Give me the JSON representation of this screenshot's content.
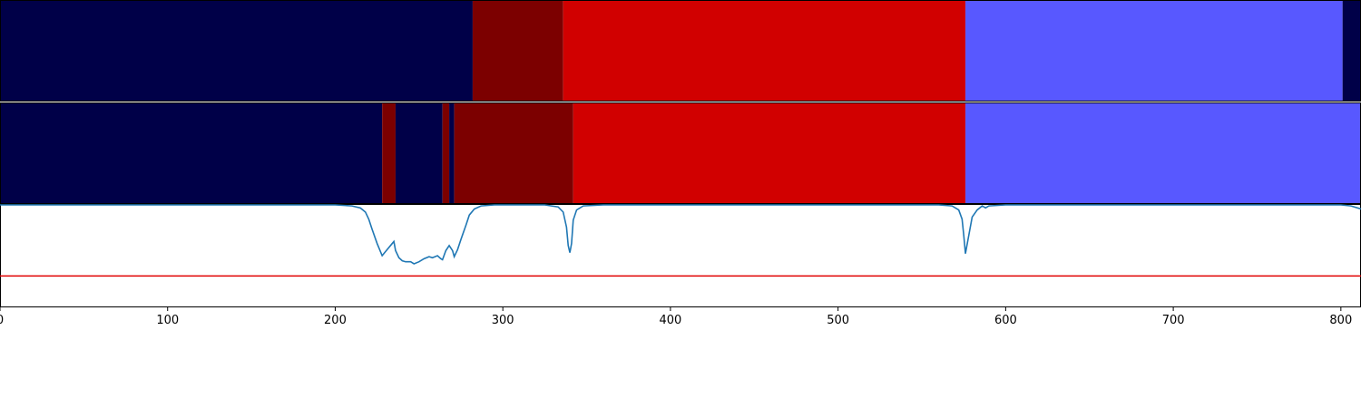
{
  "chart_data": {
    "type": "segment-strips-with-line",
    "xlim": [
      0,
      812
    ],
    "xticks": [
      "0",
      "100",
      "200",
      "300",
      "400",
      "500",
      "600",
      "700",
      "800"
    ],
    "xtick_values": [
      0,
      100,
      200,
      300,
      400,
      500,
      600,
      700,
      800
    ],
    "colors": {
      "navy": "#000048",
      "darkred": "#7c0000",
      "red": "#d10000",
      "blue": "#5858ff",
      "line": "#1f77b4",
      "threshold": "#e00000"
    },
    "strip1_segments": [
      {
        "start": 0,
        "end": 282,
        "color": "navy"
      },
      {
        "start": 282,
        "end": 336,
        "color": "darkred"
      },
      {
        "start": 336,
        "end": 576,
        "color": "red"
      },
      {
        "start": 576,
        "end": 801,
        "color": "blue"
      },
      {
        "start": 801,
        "end": 812,
        "color": "navy"
      }
    ],
    "strip2_segments": [
      {
        "start": 0,
        "end": 228,
        "color": "navy"
      },
      {
        "start": 228,
        "end": 236,
        "color": "darkred"
      },
      {
        "start": 236,
        "end": 264,
        "color": "navy"
      },
      {
        "start": 264,
        "end": 268,
        "color": "darkred"
      },
      {
        "start": 268,
        "end": 271,
        "color": "navy"
      },
      {
        "start": 271,
        "end": 342,
        "color": "darkred"
      },
      {
        "start": 342,
        "end": 576,
        "color": "red"
      },
      {
        "start": 576,
        "end": 812,
        "color": "blue"
      }
    ],
    "line_ylim": [
      0,
      1
    ],
    "threshold": 0.3,
    "line_points": [
      [
        0,
        1.0
      ],
      [
        100,
        1.0
      ],
      [
        200,
        1.0
      ],
      [
        210,
        0.99
      ],
      [
        215,
        0.97
      ],
      [
        218,
        0.93
      ],
      [
        220,
        0.86
      ],
      [
        222,
        0.76
      ],
      [
        225,
        0.62
      ],
      [
        228,
        0.5
      ],
      [
        231,
        0.56
      ],
      [
        234,
        0.62
      ],
      [
        235,
        0.64
      ],
      [
        236,
        0.55
      ],
      [
        238,
        0.48
      ],
      [
        240,
        0.45
      ],
      [
        242,
        0.44
      ],
      [
        245,
        0.44
      ],
      [
        247,
        0.42
      ],
      [
        250,
        0.44
      ],
      [
        253,
        0.47
      ],
      [
        256,
        0.49
      ],
      [
        258,
        0.48
      ],
      [
        261,
        0.5
      ],
      [
        263,
        0.47
      ],
      [
        264,
        0.46
      ],
      [
        266,
        0.55
      ],
      [
        268,
        0.6
      ],
      [
        270,
        0.55
      ],
      [
        271,
        0.49
      ],
      [
        273,
        0.56
      ],
      [
        275,
        0.66
      ],
      [
        278,
        0.8
      ],
      [
        280,
        0.9
      ],
      [
        283,
        0.96
      ],
      [
        287,
        0.99
      ],
      [
        295,
        1.0
      ],
      [
        325,
        1.0
      ],
      [
        333,
        0.98
      ],
      [
        336,
        0.93
      ],
      [
        338,
        0.78
      ],
      [
        339,
        0.6
      ],
      [
        340,
        0.53
      ],
      [
        341,
        0.62
      ],
      [
        342,
        0.85
      ],
      [
        344,
        0.95
      ],
      [
        348,
        0.99
      ],
      [
        360,
        1.0
      ],
      [
        560,
        1.0
      ],
      [
        568,
        0.99
      ],
      [
        572,
        0.95
      ],
      [
        574,
        0.86
      ],
      [
        575,
        0.7
      ],
      [
        576,
        0.52
      ],
      [
        578,
        0.7
      ],
      [
        580,
        0.88
      ],
      [
        583,
        0.95
      ],
      [
        586,
        0.99
      ],
      [
        588,
        0.97
      ],
      [
        590,
        0.99
      ],
      [
        600,
        1.0
      ],
      [
        800,
        1.0
      ],
      [
        806,
        0.99
      ],
      [
        812,
        0.96
      ]
    ]
  }
}
